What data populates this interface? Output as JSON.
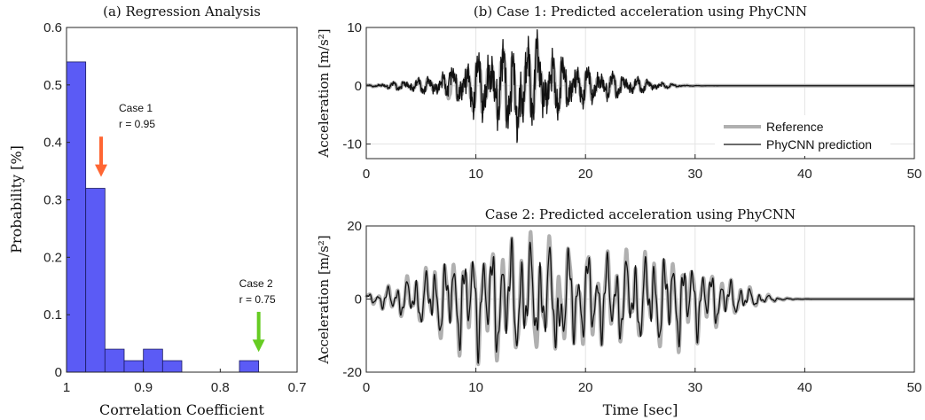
{
  "chart_data": [
    {
      "id": "hist",
      "type": "bar",
      "title": "(a) Regression Analysis",
      "xlabel": "Correlation Coefficient",
      "ylabel": "Probability [%]",
      "x_reversed": true,
      "xlim": [
        0.7,
        1.0
      ],
      "ylim": [
        0,
        0.6
      ],
      "x_ticks": [
        "1",
        "0.9",
        "0.8",
        "0.7"
      ],
      "x_tick_values": [
        1.0,
        0.9,
        0.8,
        0.7
      ],
      "y_ticks": [
        "0",
        "0.1",
        "0.2",
        "0.3",
        "0.4",
        "0.5",
        "0.6"
      ],
      "y_tick_values": [
        0,
        0.1,
        0.2,
        0.3,
        0.4,
        0.5,
        0.6
      ],
      "bin_edges": [
        1.0,
        0.975,
        0.95,
        0.925,
        0.9,
        0.875,
        0.85,
        0.825,
        0.8,
        0.775,
        0.75,
        0.725
      ],
      "values": [
        0.54,
        0.32,
        0.04,
        0.02,
        0.04,
        0.02,
        0.0,
        0.0,
        0.0,
        0.02,
        0.0
      ],
      "bar_color": "#5b5bf5",
      "bar_edge": "#1a1a60",
      "annotations": [
        {
          "name": "case1",
          "line1": "Case 1",
          "line2": "r = 0.95",
          "x": 0.955,
          "y_top": 0.41,
          "y_bottom": 0.34,
          "color": "#ff6633"
        },
        {
          "name": "case2",
          "line1": "Case 2",
          "line2": "r = 0.75",
          "x": 0.75,
          "y_top": 0.105,
          "y_bottom": 0.035,
          "color": "#66cc22"
        }
      ]
    },
    {
      "id": "case1",
      "type": "line",
      "title": "(b) Case 1: Predicted acceleration using PhyCNN",
      "xlabel": "",
      "ylabel": "Acceleration [m/s²]",
      "xlim": [
        0,
        50
      ],
      "ylim": [
        -12.5,
        10
      ],
      "x_ticks": [
        "0",
        "10",
        "20",
        "30",
        "40",
        "50"
      ],
      "x_tick_values": [
        0,
        10,
        20,
        30,
        40,
        50
      ],
      "y_ticks": [
        "-10",
        "0",
        "10"
      ],
      "y_tick_values": [
        -10,
        0,
        10
      ],
      "grid": true,
      "legend_position": "inside-right",
      "series": [
        {
          "name": "Reference",
          "color": "#b0b0b0",
          "width": 4
        },
        {
          "name": "PhyCNN prediction",
          "color": "#111111",
          "width": 1.3
        }
      ]
    },
    {
      "id": "case2",
      "type": "line",
      "title": "Case 2: Predicted acceleration using PhyCNN",
      "xlabel": "Time [sec]",
      "ylabel": "Acceleration [m/s²]",
      "xlim": [
        0,
        50
      ],
      "ylim": [
        -20,
        20
      ],
      "x_ticks": [
        "0",
        "10",
        "20",
        "30",
        "40",
        "50"
      ],
      "x_tick_values": [
        0,
        10,
        20,
        30,
        40,
        50
      ],
      "y_ticks": [
        "-20",
        "0",
        "20"
      ],
      "y_tick_values": [
        -20,
        0,
        20
      ],
      "grid": true,
      "series": [
        {
          "name": "Reference",
          "color": "#b0b0b0",
          "width": 4
        },
        {
          "name": "PhyCNN prediction",
          "color": "#111111",
          "width": 1.3
        }
      ]
    }
  ]
}
